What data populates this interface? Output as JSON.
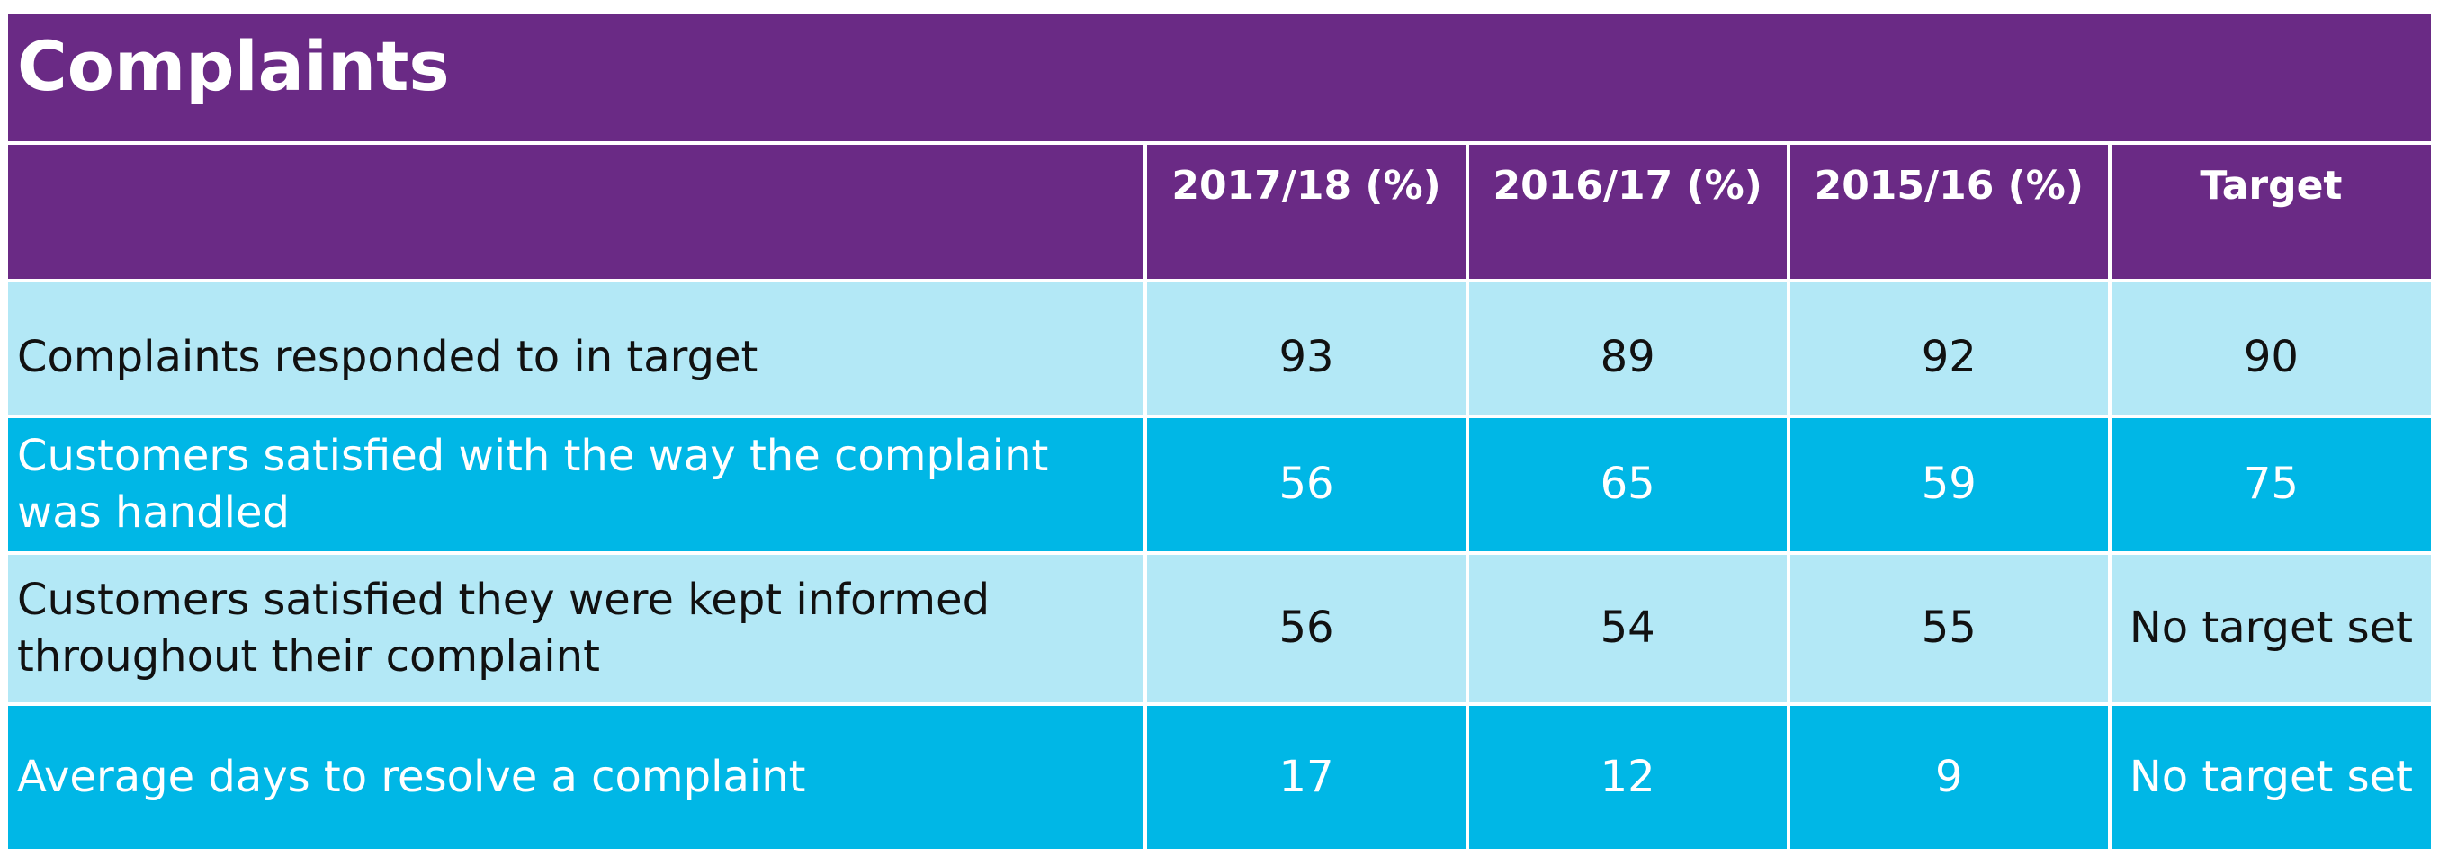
{
  "title": "Complaints",
  "table": {
    "headers": [
      "",
      "2017/18 (%)",
      "2016/17 (%)",
      "2015/16 (%)",
      "Target"
    ],
    "rows": [
      {
        "label": "Complaints responded to in target",
        "values": [
          "93",
          "89",
          "92",
          "90"
        ]
      },
      {
        "label": "Customers satisfied with the way the complaint was handled",
        "values": [
          "56",
          "65",
          "59",
          "75"
        ]
      },
      {
        "label": "Customers satisfied they were kept informed throughout their complaint",
        "values": [
          "56",
          "54",
          "55",
          "No target set"
        ]
      },
      {
        "label": "Average days to resolve a complaint",
        "values": [
          "17",
          "12",
          "9",
          "No target set"
        ]
      }
    ]
  },
  "colors": {
    "header_purple": "#6a2a85",
    "row_light": "#b3e8f6",
    "row_dark": "#00b7e6"
  }
}
